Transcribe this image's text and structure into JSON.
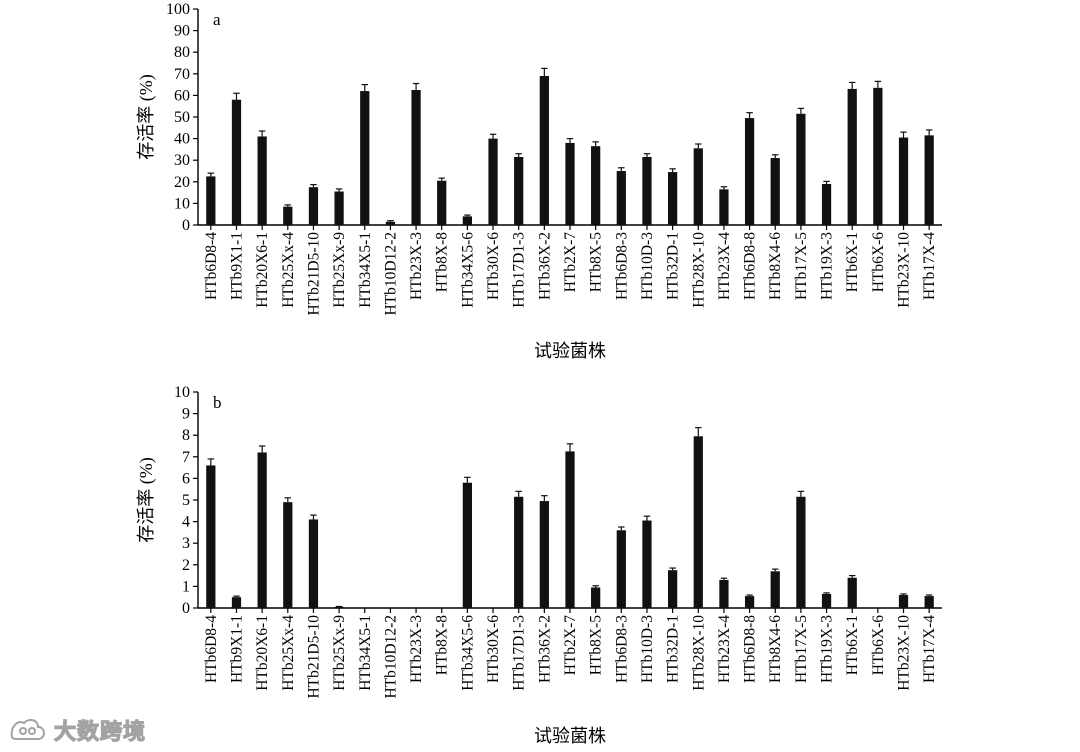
{
  "charts": [
    {
      "id": "a",
      "panel_label": "a",
      "ylabel": "存活率 (%)",
      "xlabel": "试验菌株",
      "ylim": [
        0,
        100
      ],
      "yticks": [
        0,
        10,
        20,
        30,
        40,
        50,
        60,
        70,
        80,
        90,
        100
      ]
    },
    {
      "id": "b",
      "panel_label": "b",
      "ylabel": "存活率 (%)",
      "xlabel": "试验菌株",
      "ylim": [
        0,
        10
      ],
      "yticks": [
        0,
        1,
        2,
        3,
        4,
        5,
        6,
        7,
        8,
        9,
        10
      ]
    }
  ],
  "chart_data": [
    {
      "type": "bar",
      "panel": "a",
      "categories": [
        "HTb6D8-4",
        "HTb9X1-1",
        "HTb20X6-1",
        "HTb25Xx-4",
        "HTb21D5-10",
        "HTb25Xx-9",
        "HTb34X5-1",
        "HTb10D12-2",
        "HTb23X-3",
        "HTb8X-8",
        "HTb34X5-6",
        "HTb30X-6",
        "HTb17D1-3",
        "HTb36X-2",
        "HTb2X-7",
        "HTb8X-5",
        "HTb6D8-3",
        "HTb10D-3",
        "HTb32D-1",
        "HTb28X-10",
        "HTb23X-4",
        "HTb6D8-8",
        "HTb8X4-6",
        "HTb17X-5",
        "HTb19X-3",
        "HTb6X-1",
        "HTb6X-6",
        "HTb23X-10",
        "HTb17X-4"
      ],
      "values": [
        22.5,
        58,
        41,
        8.5,
        17.5,
        15.5,
        62,
        1.5,
        62.5,
        20.5,
        4,
        40,
        31.5,
        69,
        38,
        36.5,
        25,
        31.5,
        24.5,
        35.5,
        16.5,
        49.5,
        31,
        51.5,
        19,
        63,
        63.5,
        40.5,
        41.5
      ],
      "errors": [
        1.5,
        3,
        2.5,
        0.8,
        1.2,
        1.2,
        3,
        0.5,
        3,
        1.2,
        0.6,
        2,
        1.5,
        3.5,
        2,
        2,
        1.5,
        1.5,
        1.5,
        2,
        1.2,
        2.5,
        1.5,
        2.5,
        1.2,
        3,
        3,
        2.5,
        2.5
      ],
      "ylim": [
        0,
        100
      ]
    },
    {
      "type": "bar",
      "panel": "b",
      "categories": [
        "HTb6D8-4",
        "HTb9X1-1",
        "HTb20X6-1",
        "HTb25Xx-4",
        "HTb21D5-10",
        "HTb25Xx-9",
        "HTb34X5-1",
        "HTb10D12-2",
        "HTb23X-3",
        "HTb8X-8",
        "HTb34X5-6",
        "HTb30X-6",
        "HTb17D1-3",
        "HTb36X-2",
        "HTb2X-7",
        "HTb8X-5",
        "HTb6D8-3",
        "HTb10D-3",
        "HTb32D-1",
        "HTb28X-10",
        "HTb23X-4",
        "HTb6D8-8",
        "HTb8X4-6",
        "HTb17X-5",
        "HTb19X-3",
        "HTb6X-1",
        "HTb6X-6",
        "HTb23X-10",
        "HTb17X-4"
      ],
      "values": [
        6.6,
        0.5,
        7.2,
        4.9,
        4.1,
        0.05,
        0,
        0,
        0,
        0,
        5.8,
        0,
        5.15,
        4.95,
        7.25,
        0.95,
        3.6,
        4.05,
        1.75,
        7.95,
        1.3,
        0.55,
        1.7,
        5.15,
        0.65,
        1.4,
        0,
        0.6,
        0.55
      ],
      "errors": [
        0.3,
        0.05,
        0.3,
        0.2,
        0.2,
        0.02,
        0,
        0,
        0,
        0,
        0.25,
        0,
        0.25,
        0.25,
        0.35,
        0.08,
        0.15,
        0.2,
        0.1,
        0.4,
        0.08,
        0.05,
        0.1,
        0.25,
        0.05,
        0.1,
        0,
        0.05,
        0.05
      ],
      "ylim": [
        0,
        10
      ]
    }
  ],
  "watermark": {
    "text": "大数跨境",
    "icon": "brand-logo-icon"
  }
}
